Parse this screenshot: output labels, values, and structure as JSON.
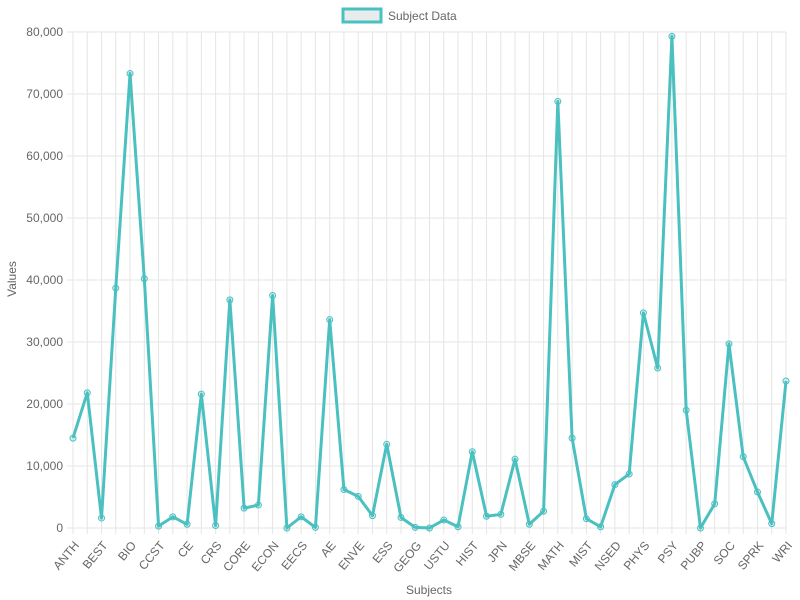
{
  "chart_data": {
    "type": "line",
    "categories": [
      "ANTH",
      "",
      "BEST",
      "",
      "BIO",
      "",
      "CCST",
      "",
      "CE",
      "",
      "CRS",
      "",
      "CORE",
      "",
      "ECON",
      "",
      "EECS",
      "",
      "AE",
      "",
      "ENVE",
      "",
      "ESS",
      "",
      "GEOG",
      "",
      "USTU",
      "",
      "HIST",
      "",
      "JPN",
      "",
      "MBSE",
      "",
      "MATH",
      "",
      "MIST",
      "",
      "NSED",
      "",
      "PHYS",
      "",
      "PSY",
      "",
      "PUBP",
      "",
      "SOC",
      "",
      "SPRK",
      "",
      "WRI"
    ],
    "series": [
      {
        "name": "Subject Data",
        "values": [
          14500,
          21800,
          1600,
          38700,
          73300,
          40200,
          300,
          1800,
          600,
          21600,
          400,
          36800,
          3200,
          3700,
          37500,
          0,
          1800,
          100,
          33600,
          6200,
          5100,
          2000,
          13500,
          1700,
          100,
          0,
          1300,
          200,
          12300,
          1900,
          2200,
          11100,
          600,
          2700,
          68800,
          14500,
          1500,
          200,
          7000,
          8700,
          34700,
          25800,
          79300,
          19000,
          0,
          3900,
          29700,
          11500,
          5800,
          700,
          23700
        ]
      }
    ],
    "xlabel": "Subjects",
    "ylabel": "Values",
    "ylim": [
      0,
      80000
    ],
    "yticks": [
      "0",
      "10,000",
      "20,000",
      "30,000",
      "40,000",
      "50,000",
      "60,000",
      "70,000",
      "80,000"
    ],
    "colors": {
      "line": "#4bc0c0",
      "legend_fill": "#e8ecec",
      "grid": "#e5e5e5"
    },
    "legend": {
      "position": "top"
    },
    "grid": true
  }
}
